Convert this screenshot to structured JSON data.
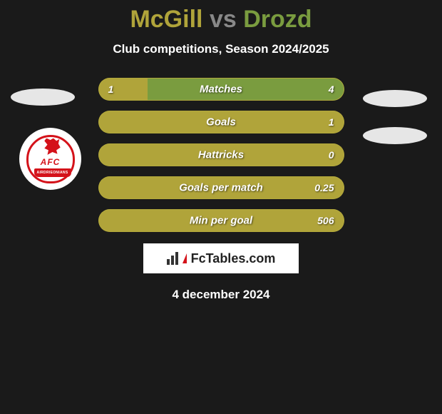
{
  "title": {
    "player1": "McGill",
    "vs": "vs",
    "player2": "Drozd"
  },
  "subtitle": "Club competitions, Season 2024/2025",
  "club": {
    "afc": "AFC",
    "banner": "AIRDRIEONIANS"
  },
  "colors": {
    "player1": "#b0a43a",
    "player2": "#7a9c3f",
    "bg": "#1a1a1a",
    "badge_red": "#d4121a"
  },
  "bars": [
    {
      "label": "Matches",
      "left_val": "1",
      "right_val": "4",
      "left_pct": 20,
      "right_pct": 80
    },
    {
      "label": "Goals",
      "left_val": "",
      "right_val": "1",
      "left_pct": 0,
      "right_pct": 100,
      "full_left_color": true
    },
    {
      "label": "Hattricks",
      "left_val": "",
      "right_val": "0",
      "left_pct": 0,
      "right_pct": 100,
      "full_left_color": true
    },
    {
      "label": "Goals per match",
      "left_val": "",
      "right_val": "0.25",
      "left_pct": 0,
      "right_pct": 100,
      "full_left_color": true
    },
    {
      "label": "Min per goal",
      "left_val": "",
      "right_val": "506",
      "left_pct": 0,
      "right_pct": 100,
      "full_left_color": true
    }
  ],
  "footer_brand": "FcTables.com",
  "date": "4 december 2024"
}
